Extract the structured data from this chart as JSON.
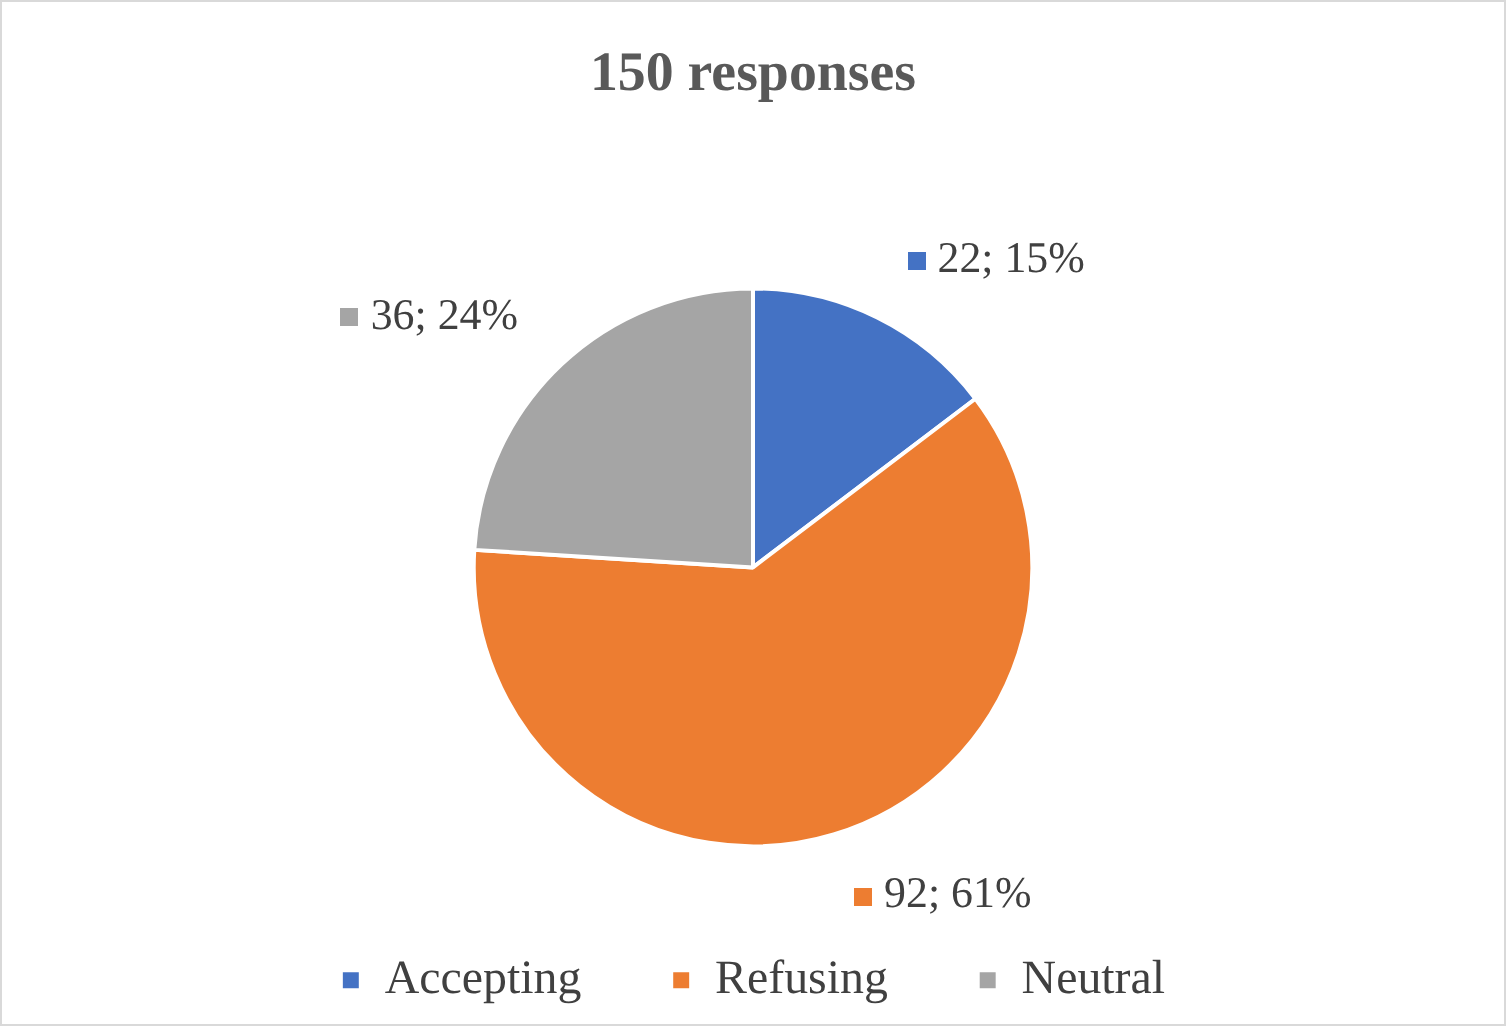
{
  "chart_data": {
    "type": "pie",
    "title": "150 responses",
    "categories": [
      "Accepting",
      "Refusing",
      "Neutral"
    ],
    "values": [
      22,
      92,
      36
    ],
    "colors": [
      "#4472c4",
      "#ed7d31",
      "#a5a5a5"
    ],
    "value_labels": [
      "22; 15%",
      "92; 61%",
      "36; 24%"
    ],
    "legend": "bottom"
  }
}
